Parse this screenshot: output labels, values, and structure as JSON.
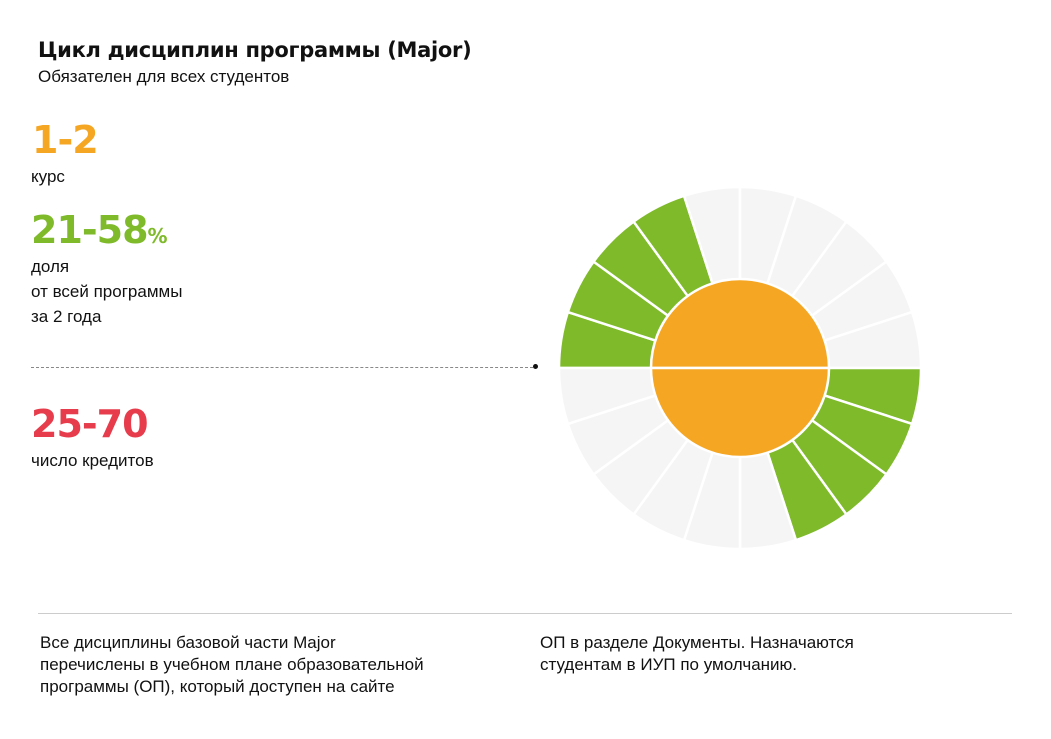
{
  "header": {
    "title": "Цикл дисциплин программы (Major)",
    "subtitle": "Обязателен для всех студентов"
  },
  "stats": [
    {
      "value": "1-2",
      "suffix": "",
      "label": "курс",
      "color": "#F5A623"
    },
    {
      "value": "21-58",
      "suffix": "%",
      "label_lines": [
        "доля",
        "от всей программы",
        "за 2 года"
      ],
      "color": "#7EBA2A"
    },
    {
      "value": "25-70",
      "suffix": "",
      "label": "число кредитов",
      "color": "#E63C4B"
    }
  ],
  "footer": {
    "col1": "Все дисциплины базовой части Major\nперечислены в учебном плане образовательной\nпрограммы (ОП), который  доступен на сайте",
    "col2": "ОП в разделе Документы. Назначаются\nстудентам в ИУП по умолчанию."
  },
  "ring": {
    "segments_total": 20,
    "colors": {
      "active": "#7EBA2A",
      "inactive": "#F5F5F5",
      "core": "#F5A623"
    },
    "top_half_active_from_left": 4,
    "bottom_half_active_from_right": 4
  }
}
